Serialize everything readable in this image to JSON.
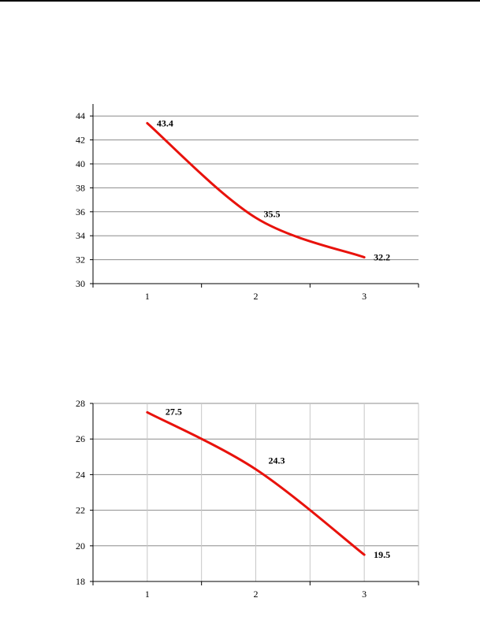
{
  "colors": {
    "series": "#e8120c",
    "grid": "#8c8c8c",
    "axis": "#000000"
  },
  "chart_data": [
    {
      "type": "line",
      "title": "",
      "xlabel": "",
      "ylabel": "",
      "x": [
        1,
        2,
        3
      ],
      "categories": [
        "1",
        "2",
        "3"
      ],
      "series": [
        {
          "values": [
            43.4,
            35.5,
            32.2
          ]
        }
      ],
      "data_labels": [
        "43.4",
        "35.5",
        "32.2"
      ],
      "ylim": [
        30,
        45
      ],
      "yticks": [
        30,
        32,
        34,
        36,
        38,
        40,
        42,
        44
      ],
      "ytick_labels": [
        "30",
        "32",
        "34",
        "36",
        "38",
        "40",
        "42",
        "44"
      ],
      "grid": {
        "horizontal": true,
        "vertical": false
      },
      "legend": "none"
    },
    {
      "type": "line",
      "title": "",
      "xlabel": "",
      "ylabel": "",
      "x": [
        1,
        2,
        3
      ],
      "categories": [
        "1",
        "2",
        "3"
      ],
      "series": [
        {
          "values": [
            27.5,
            24.3,
            19.5
          ]
        }
      ],
      "data_labels": [
        "27.5",
        "24.3",
        "19.5"
      ],
      "ylim": [
        18,
        28
      ],
      "yticks": [
        18,
        20,
        22,
        24,
        26,
        28
      ],
      "ytick_labels": [
        "18",
        "20",
        "22",
        "24",
        "26",
        "28"
      ],
      "grid": {
        "horizontal": true,
        "vertical": true
      },
      "legend": "none"
    }
  ]
}
